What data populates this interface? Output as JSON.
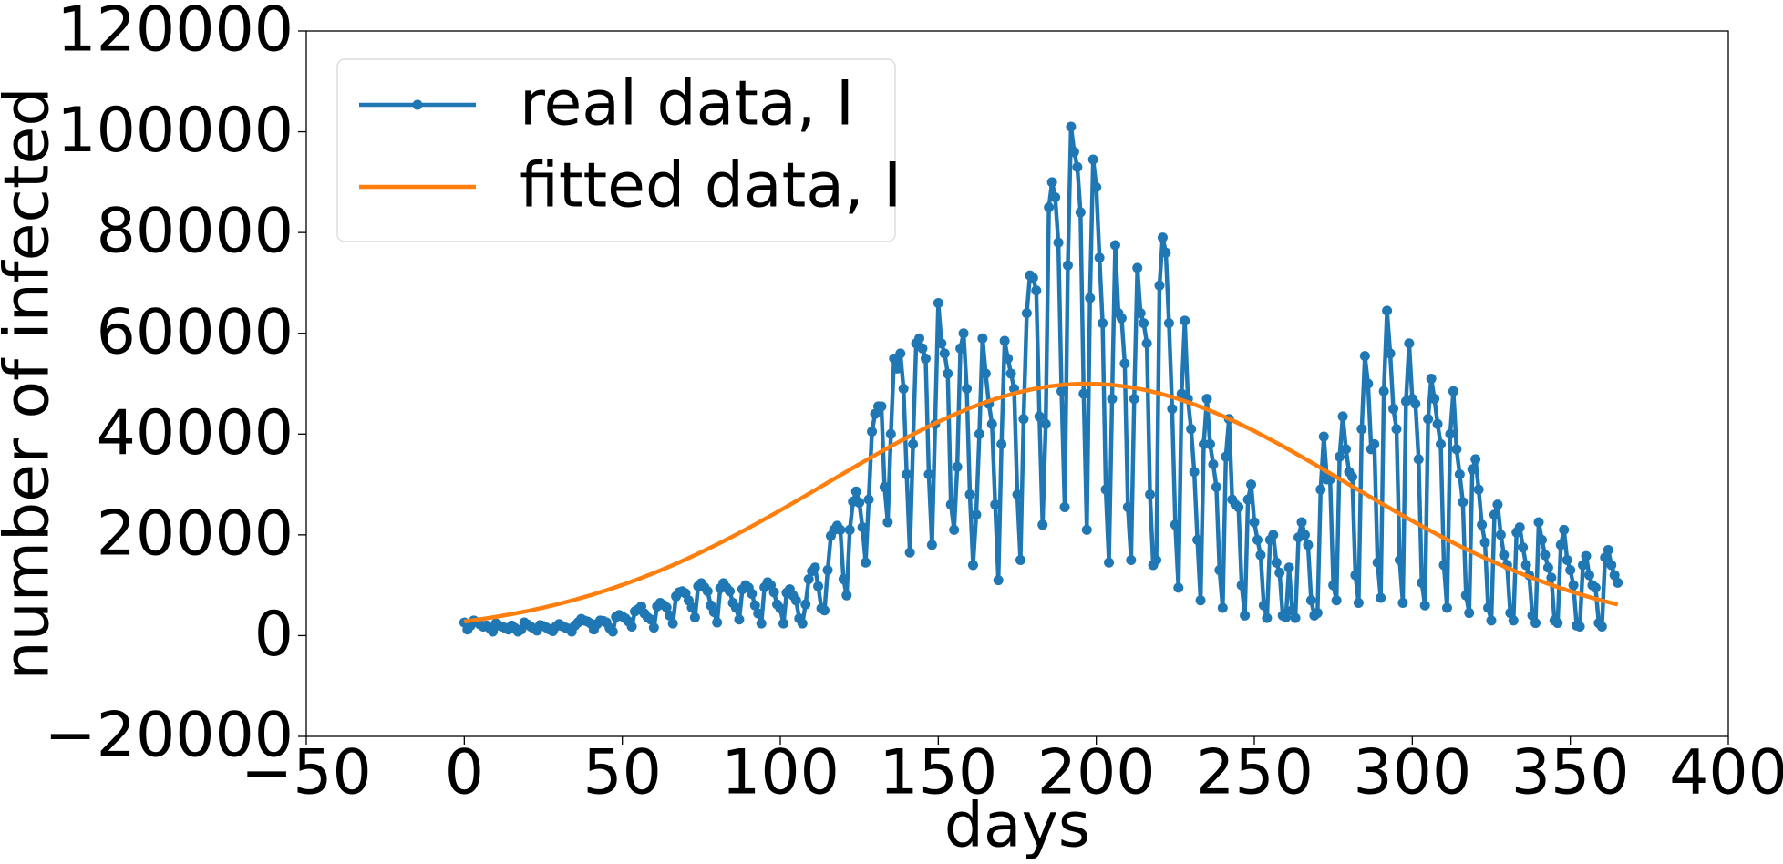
{
  "chart_data": {
    "type": "line",
    "xlabel": "days",
    "ylabel": "number of infected",
    "xlim": [
      -50,
      400
    ],
    "xticks": [
      {
        "value": -50,
        "label": "−50"
      },
      0,
      50,
      100,
      150,
      200,
      250,
      300,
      350,
      400
    ],
    "ylim": [
      -20000,
      120000
    ],
    "yticks": [
      {
        "value": -20000,
        "label": "−20000"
      },
      0,
      20000,
      40000,
      60000,
      80000,
      100000,
      120000
    ],
    "grid": false,
    "legend": "upper left",
    "x": [
      0,
      1,
      2,
      3,
      4,
      5,
      6,
      7,
      8,
      9,
      10,
      11,
      12,
      13,
      14,
      15,
      16,
      17,
      18,
      19,
      20,
      21,
      22,
      23,
      24,
      25,
      26,
      27,
      28,
      29,
      30,
      31,
      32,
      33,
      34,
      35,
      36,
      37,
      38,
      39,
      40,
      41,
      42,
      43,
      44,
      45,
      46,
      47,
      48,
      49,
      50,
      51,
      52,
      53,
      54,
      55,
      56,
      57,
      58,
      59,
      60,
      61,
      62,
      63,
      64,
      65,
      66,
      67,
      68,
      69,
      70,
      71,
      72,
      73,
      74,
      75,
      76,
      77,
      78,
      79,
      80,
      81,
      82,
      83,
      84,
      85,
      86,
      87,
      88,
      89,
      90,
      91,
      92,
      93,
      94,
      95,
      96,
      97,
      98,
      99,
      100,
      101,
      102,
      103,
      104,
      105,
      106,
      107,
      108,
      109,
      110,
      111,
      112,
      113,
      114,
      115,
      116,
      117,
      118,
      119,
      120,
      121,
      122,
      123,
      124,
      125,
      126,
      127,
      128,
      129,
      130,
      131,
      132,
      133,
      134,
      135,
      136,
      137,
      138,
      139,
      140,
      141,
      142,
      143,
      144,
      145,
      146,
      147,
      148,
      149,
      150,
      151,
      152,
      153,
      154,
      155,
      156,
      157,
      158,
      159,
      160,
      161,
      162,
      163,
      164,
      165,
      166,
      167,
      168,
      169,
      170,
      171,
      172,
      173,
      174,
      175,
      176,
      177,
      178,
      179,
      180,
      181,
      182,
      183,
      184,
      185,
      186,
      187,
      188,
      189,
      190,
      191,
      192,
      193,
      194,
      195,
      196,
      197,
      198,
      199,
      200,
      201,
      202,
      203,
      204,
      205,
      206,
      207,
      208,
      209,
      210,
      211,
      212,
      213,
      214,
      215,
      216,
      217,
      218,
      219,
      220,
      221,
      222,
      223,
      224,
      225,
      226,
      227,
      228,
      229,
      230,
      231,
      232,
      233,
      234,
      235,
      236,
      237,
      238,
      239,
      240,
      241,
      242,
      243,
      244,
      245,
      246,
      247,
      248,
      249,
      250,
      251,
      252,
      253,
      254,
      255,
      256,
      257,
      258,
      259,
      260,
      261,
      262,
      263,
      264,
      265,
      266,
      267,
      268,
      269,
      270,
      271,
      272,
      273,
      274,
      275,
      276,
      277,
      278,
      279,
      280,
      281,
      282,
      283,
      284,
      285,
      286,
      287,
      288,
      289,
      290,
      291,
      292,
      293,
      294,
      295,
      296,
      297,
      298,
      299,
      300,
      301,
      302,
      303,
      304,
      305,
      306,
      307,
      308,
      309,
      310,
      311,
      312,
      313,
      314,
      315,
      316,
      317,
      318,
      319,
      320,
      321,
      322,
      323,
      324,
      325,
      326,
      327,
      328,
      329,
      330,
      331,
      332,
      333,
      334,
      335,
      336,
      337,
      338,
      339,
      340,
      341,
      342,
      343,
      344,
      345,
      346,
      347,
      348,
      349,
      350,
      351,
      352,
      353,
      354,
      355,
      356,
      357,
      358,
      359,
      360,
      361,
      362,
      363,
      364,
      365
    ],
    "series": [
      {
        "name": "real data, I",
        "color": "#1f77b4",
        "marker": true,
        "values": [
          2600,
          1200,
          2000,
          3000,
          2700,
          2200,
          1800,
          2000,
          1500,
          800,
          2400,
          2000,
          1800,
          1500,
          1200,
          2000,
          1500,
          800,
          1200,
          2600,
          2200,
          1800,
          1400,
          1000,
          2100,
          1900,
          1600,
          1200,
          900,
          1800,
          2300,
          1900,
          1600,
          1400,
          800,
          2000,
          2600,
          3300,
          3000,
          2800,
          2400,
          1200,
          2300,
          3000,
          2900,
          2600,
          1500,
          800,
          3700,
          4100,
          3800,
          3400,
          2800,
          1800,
          4800,
          5200,
          5800,
          4400,
          3600,
          3200,
          1600,
          5800,
          6500,
          6100,
          5600,
          4000,
          2400,
          7800,
          8600,
          8800,
          8400,
          7000,
          5600,
          3600,
          9800,
          10400,
          9600,
          8800,
          6000,
          4700,
          2600,
          9400,
          10400,
          9500,
          8800,
          6500,
          5500,
          3200,
          9200,
          10000,
          9500,
          8300,
          6000,
          4400,
          2400,
          9600,
          10600,
          10000,
          8600,
          6200,
          5400,
          2400,
          8500,
          9200,
          8000,
          7000,
          3400,
          2400,
          6200,
          11200,
          12800,
          13500,
          9800,
          5400,
          5000,
          13000,
          19800,
          21000,
          21800,
          21000,
          11200,
          8000,
          21000,
          26600,
          28600,
          26400,
          21500,
          14500,
          27000,
          40500,
          44000,
          45500,
          45500,
          29500,
          22500,
          40000,
          55000,
          53000,
          56000,
          49000,
          32000,
          16500,
          38000,
          58000,
          59000,
          57000,
          55000,
          32000,
          18000,
          42000,
          66000,
          58000,
          56000,
          52000,
          26000,
          21000,
          33500,
          57000,
          60000,
          49000,
          28000,
          14000,
          24000,
          40000,
          59000,
          52000,
          46000,
          42000,
          26000,
          11000,
          38000,
          58500,
          55000,
          52000,
          49000,
          28000,
          15000,
          43000,
          64000,
          71500,
          71000,
          68500,
          43500,
          22000,
          42000,
          85000,
          90000,
          87000,
          78000,
          48500,
          25500,
          73500,
          101000,
          96000,
          93000,
          84000,
          48000,
          21000,
          67000,
          94500,
          89000,
          75000,
          62000,
          29000,
          14500,
          47000,
          77500,
          64000,
          63000,
          54000,
          25500,
          15000,
          47000,
          73000,
          64000,
          62000,
          58000,
          28000,
          14000,
          15000,
          69500,
          79000,
          76000,
          62000,
          45000,
          22000,
          9500,
          48000,
          62500,
          47000,
          41000,
          32500,
          19000,
          7000,
          38000,
          47000,
          38000,
          34000,
          29500,
          13000,
          5500,
          35500,
          43000,
          27000,
          26000,
          25500,
          10000,
          4000,
          27000,
          30000,
          22500,
          19000,
          16000,
          6000,
          3500,
          19000,
          20000,
          14500,
          12500,
          4000,
          3600,
          13500,
          5000,
          3500,
          19500,
          22500,
          20000,
          18000,
          7000,
          4000,
          4500,
          29000,
          39500,
          31000,
          31000,
          10000,
          7000,
          35500,
          43500,
          37000,
          32500,
          31500,
          12000,
          6500,
          41000,
          55500,
          50000,
          37000,
          38000,
          14500,
          7500,
          48500,
          64500,
          56000,
          45000,
          41000,
          15000,
          6500,
          46500,
          58000,
          47000,
          46000,
          35000,
          10500,
          6000,
          43000,
          51000,
          47000,
          42000,
          38000,
          14000,
          5500,
          40000,
          48500,
          37000,
          32000,
          26500,
          8000,
          4500,
          33000,
          35000,
          29000,
          22000,
          18500,
          5500,
          3000,
          24000,
          26000,
          20000,
          16000,
          14000,
          4500,
          3000,
          20500,
          21500,
          17500,
          14000,
          12000,
          4000,
          2500,
          22500,
          19000,
          16000,
          13500,
          11500,
          3000,
          2500,
          18000,
          21000,
          15000,
          13000,
          10000,
          2000,
          1800,
          14000,
          15800,
          12000,
          10000,
          9500,
          2500,
          1800,
          15500,
          17000,
          14000,
          12000,
          10500
        ]
      },
      {
        "name": "fitted data, I",
        "color": "#ff7f0e",
        "marker": false,
        "x": [
          0,
          5,
          10,
          15,
          20,
          25,
          30,
          35,
          40,
          45,
          50,
          55,
          60,
          65,
          70,
          75,
          80,
          85,
          90,
          95,
          100,
          105,
          110,
          115,
          120,
          125,
          130,
          135,
          140,
          145,
          150,
          155,
          160,
          165,
          170,
          175,
          180,
          185,
          190,
          195,
          200,
          205,
          210,
          215,
          220,
          225,
          230,
          235,
          240,
          245,
          250,
          255,
          260,
          265,
          270,
          275,
          280,
          285,
          290,
          295,
          300,
          305,
          310,
          315,
          320,
          325,
          330,
          335,
          340,
          345,
          350,
          355,
          360,
          365
        ],
        "values": [
          2805,
          3244,
          3733,
          4281,
          4889,
          5568,
          6312,
          7132,
          8030,
          9002,
          10061,
          11197,
          12419,
          13724,
          15106,
          16570,
          18105,
          19710,
          21380,
          23105,
          24875,
          26680,
          28510,
          30355,
          32200,
          34035,
          35835,
          37595,
          39290,
          40910,
          42440,
          43865,
          45170,
          46340,
          47365,
          48235,
          48940,
          49470,
          49820,
          49985,
          49965,
          49765,
          49380,
          48815,
          48075,
          47175,
          46120,
          44920,
          43590,
          42140,
          40590,
          38950,
          37245,
          35480,
          33665,
          31830,
          29985,
          28140,
          26320,
          24520,
          22755,
          21045,
          19385,
          17790,
          16270,
          14825,
          13455,
          12165,
          10965,
          9840,
          8800,
          7840,
          6960,
          6160
        ]
      }
    ]
  }
}
